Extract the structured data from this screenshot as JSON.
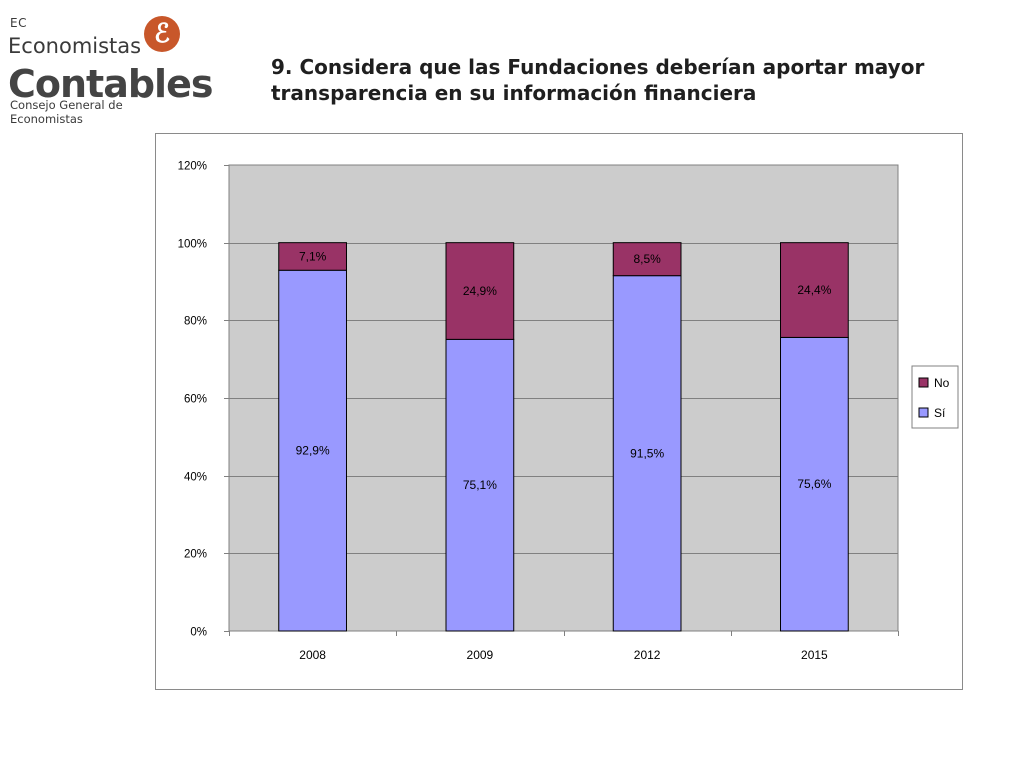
{
  "logo": {
    "line1": "EC",
    "line2": "Economistas",
    "line3": "Contables",
    "line4": "Consejo General de Economistas",
    "mark": "ℰ"
  },
  "title": {
    "line1": "9. Considera que las Fundaciones deberían aportar mayor",
    "line2": "transparencia en su información financiera"
  },
  "colors": {
    "plot_bg": "#cccccc",
    "si": "#9999ff",
    "no": "#993366"
  },
  "chart_data": {
    "type": "bar",
    "stacked": true,
    "categories": [
      "2008",
      "2009",
      "2012",
      "2015"
    ],
    "series": [
      {
        "name": "Sí",
        "values": [
          92.9,
          75.1,
          91.5,
          75.6
        ],
        "labels": [
          "92,9%",
          "75,1%",
          "91,5%",
          "75,6%"
        ]
      },
      {
        "name": "No",
        "values": [
          7.1,
          24.9,
          8.5,
          24.4
        ],
        "labels": [
          "7,1%",
          "24,9%",
          "8,5%",
          "24,4%"
        ]
      }
    ],
    "y_ticks": [
      "0%",
      "20%",
      "40%",
      "60%",
      "80%",
      "100%",
      "120%"
    ],
    "ylim": [
      0,
      120
    ],
    "grid": true,
    "legend_position": "right",
    "legend_order": [
      "No",
      "Sí"
    ]
  }
}
